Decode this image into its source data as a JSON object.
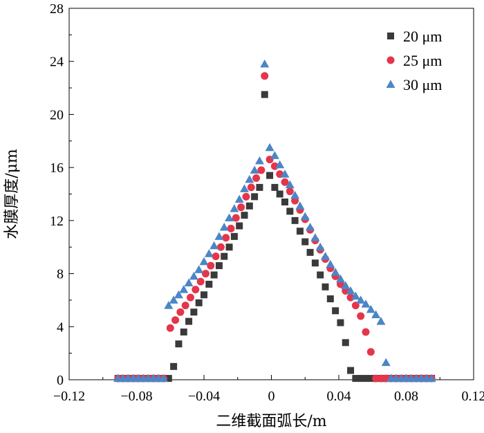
{
  "chart_data": {
    "type": "scatter",
    "title": "",
    "xlabel": "二维截面弧长/m",
    "ylabel": "水膜厚度/μm",
    "xlim": [
      -0.12,
      0.12
    ],
    "ylim": [
      0,
      28
    ],
    "xticks": [
      "−0.12",
      "−0.08",
      "−0.04",
      "0",
      "0.04",
      "0.08",
      "0.12"
    ],
    "yticks": [
      "0",
      "4",
      "8",
      "12",
      "16",
      "20",
      "24",
      "28"
    ],
    "legend_position": "top-right",
    "grid": false,
    "series": [
      {
        "name": "20 μm",
        "marker": "square",
        "color": "#3a3a3a",
        "points": [
          [
            -0.091,
            0.1
          ],
          [
            -0.088,
            0.1
          ],
          [
            -0.085,
            0.1
          ],
          [
            -0.082,
            0.1
          ],
          [
            -0.079,
            0.1
          ],
          [
            -0.076,
            0.1
          ],
          [
            -0.073,
            0.1
          ],
          [
            -0.07,
            0.1
          ],
          [
            -0.067,
            0.1
          ],
          [
            -0.064,
            0.1
          ],
          [
            -0.061,
            0.1
          ],
          [
            -0.058,
            1.0
          ],
          [
            -0.055,
            2.7
          ],
          [
            -0.052,
            3.6
          ],
          [
            -0.049,
            4.4
          ],
          [
            -0.046,
            5.1
          ],
          [
            -0.043,
            5.8
          ],
          [
            -0.04,
            6.4
          ],
          [
            -0.037,
            7.2
          ],
          [
            -0.034,
            7.9
          ],
          [
            -0.031,
            8.6
          ],
          [
            -0.028,
            9.3
          ],
          [
            -0.025,
            10.0
          ],
          [
            -0.022,
            10.8
          ],
          [
            -0.019,
            11.6
          ],
          [
            -0.016,
            12.4
          ],
          [
            -0.013,
            13.1
          ],
          [
            -0.01,
            13.8
          ],
          [
            -0.007,
            14.5
          ],
          [
            -0.004,
            21.5
          ],
          [
            -0.001,
            15.4
          ],
          [
            0.002,
            14.5
          ],
          [
            0.005,
            14.0
          ],
          [
            0.008,
            13.4
          ],
          [
            0.011,
            12.7
          ],
          [
            0.014,
            12.0
          ],
          [
            0.017,
            11.2
          ],
          [
            0.02,
            10.4
          ],
          [
            0.023,
            9.6
          ],
          [
            0.026,
            8.8
          ],
          [
            0.029,
            7.9
          ],
          [
            0.032,
            7.0
          ],
          [
            0.035,
            6.1
          ],
          [
            0.038,
            5.2
          ],
          [
            0.041,
            4.3
          ],
          [
            0.044,
            2.8
          ],
          [
            0.047,
            0.7
          ],
          [
            0.05,
            0.1
          ],
          [
            0.053,
            0.1
          ],
          [
            0.056,
            0.1
          ],
          [
            0.059,
            0.1
          ],
          [
            0.062,
            0.1
          ],
          [
            0.065,
            0.1
          ],
          [
            0.068,
            0.1
          ],
          [
            0.071,
            0.1
          ],
          [
            0.074,
            0.1
          ],
          [
            0.077,
            0.1
          ],
          [
            0.08,
            0.1
          ],
          [
            0.083,
            0.1
          ],
          [
            0.086,
            0.1
          ],
          [
            0.089,
            0.1
          ],
          [
            0.092,
            0.1
          ],
          [
            0.095,
            0.1
          ]
        ]
      },
      {
        "name": "25 μm",
        "marker": "circle",
        "color": "#e5354b",
        "points": [
          [
            -0.091,
            0.1
          ],
          [
            -0.088,
            0.1
          ],
          [
            -0.085,
            0.1
          ],
          [
            -0.082,
            0.1
          ],
          [
            -0.079,
            0.1
          ],
          [
            -0.076,
            0.1
          ],
          [
            -0.073,
            0.1
          ],
          [
            -0.07,
            0.1
          ],
          [
            -0.067,
            0.1
          ],
          [
            -0.064,
            0.1
          ],
          [
            -0.06,
            3.9
          ],
          [
            -0.057,
            4.5
          ],
          [
            -0.054,
            5.1
          ],
          [
            -0.051,
            5.6
          ],
          [
            -0.048,
            6.2
          ],
          [
            -0.045,
            6.8
          ],
          [
            -0.042,
            7.4
          ],
          [
            -0.039,
            8.0
          ],
          [
            -0.036,
            8.6
          ],
          [
            -0.033,
            9.3
          ],
          [
            -0.03,
            10.0
          ],
          [
            -0.027,
            10.7
          ],
          [
            -0.024,
            11.4
          ],
          [
            -0.021,
            12.2
          ],
          [
            -0.018,
            13.0
          ],
          [
            -0.015,
            13.8
          ],
          [
            -0.012,
            14.5
          ],
          [
            -0.009,
            15.2
          ],
          [
            -0.006,
            15.8
          ],
          [
            -0.004,
            22.9
          ],
          [
            -0.001,
            16.6
          ],
          [
            0.002,
            16.1
          ],
          [
            0.005,
            15.5
          ],
          [
            0.008,
            14.9
          ],
          [
            0.011,
            14.2
          ],
          [
            0.014,
            13.5
          ],
          [
            0.017,
            12.8
          ],
          [
            0.02,
            12.1
          ],
          [
            0.023,
            11.3
          ],
          [
            0.026,
            10.5
          ],
          [
            0.029,
            9.8
          ],
          [
            0.032,
            9.1
          ],
          [
            0.035,
            8.4
          ],
          [
            0.038,
            7.8
          ],
          [
            0.041,
            7.2
          ],
          [
            0.044,
            6.7
          ],
          [
            0.047,
            6.2
          ],
          [
            0.05,
            5.6
          ],
          [
            0.053,
            4.8
          ],
          [
            0.056,
            3.6
          ],
          [
            0.059,
            2.1
          ],
          [
            0.062,
            0.1
          ],
          [
            0.065,
            0.1
          ],
          [
            0.068,
            0.1
          ],
          [
            0.071,
            0.1
          ],
          [
            0.074,
            0.1
          ],
          [
            0.077,
            0.1
          ],
          [
            0.08,
            0.1
          ],
          [
            0.083,
            0.1
          ],
          [
            0.086,
            0.1
          ],
          [
            0.089,
            0.1
          ],
          [
            0.092,
            0.1
          ],
          [
            0.095,
            0.1
          ]
        ]
      },
      {
        "name": "30 μm",
        "marker": "triangle",
        "color": "#4b86c6",
        "points": [
          [
            -0.091,
            0.1
          ],
          [
            -0.088,
            0.1
          ],
          [
            -0.085,
            0.1
          ],
          [
            -0.082,
            0.1
          ],
          [
            -0.079,
            0.1
          ],
          [
            -0.076,
            0.1
          ],
          [
            -0.073,
            0.1
          ],
          [
            -0.07,
            0.1
          ],
          [
            -0.067,
            0.1
          ],
          [
            -0.064,
            0.1
          ],
          [
            -0.061,
            5.6
          ],
          [
            -0.058,
            6.0
          ],
          [
            -0.055,
            6.4
          ],
          [
            -0.052,
            6.8
          ],
          [
            -0.049,
            7.3
          ],
          [
            -0.046,
            7.8
          ],
          [
            -0.043,
            8.3
          ],
          [
            -0.04,
            8.9
          ],
          [
            -0.037,
            9.5
          ],
          [
            -0.034,
            10.1
          ],
          [
            -0.031,
            10.8
          ],
          [
            -0.028,
            11.5
          ],
          [
            -0.025,
            12.2
          ],
          [
            -0.022,
            12.9
          ],
          [
            -0.019,
            13.6
          ],
          [
            -0.016,
            14.4
          ],
          [
            -0.013,
            15.1
          ],
          [
            -0.01,
            15.8
          ],
          [
            -0.007,
            16.5
          ],
          [
            -0.004,
            23.8
          ],
          [
            -0.001,
            17.5
          ],
          [
            0.002,
            16.9
          ],
          [
            0.005,
            16.2
          ],
          [
            0.008,
            15.5
          ],
          [
            0.011,
            14.7
          ],
          [
            0.014,
            13.9
          ],
          [
            0.017,
            13.1
          ],
          [
            0.02,
            12.3
          ],
          [
            0.023,
            11.5
          ],
          [
            0.026,
            10.7
          ],
          [
            0.029,
            10.0
          ],
          [
            0.032,
            9.3
          ],
          [
            0.035,
            8.7
          ],
          [
            0.038,
            8.1
          ],
          [
            0.041,
            7.6
          ],
          [
            0.044,
            7.1
          ],
          [
            0.047,
            6.7
          ],
          [
            0.05,
            6.3
          ],
          [
            0.053,
            6.0
          ],
          [
            0.056,
            5.7
          ],
          [
            0.059,
            5.3
          ],
          [
            0.062,
            4.9
          ],
          [
            0.065,
            4.4
          ],
          [
            0.068,
            1.3
          ],
          [
            0.071,
            0.1
          ],
          [
            0.074,
            0.1
          ],
          [
            0.077,
            0.1
          ],
          [
            0.08,
            0.1
          ],
          [
            0.083,
            0.1
          ],
          [
            0.086,
            0.1
          ],
          [
            0.089,
            0.1
          ],
          [
            0.092,
            0.1
          ],
          [
            0.095,
            0.1
          ]
        ]
      }
    ]
  }
}
